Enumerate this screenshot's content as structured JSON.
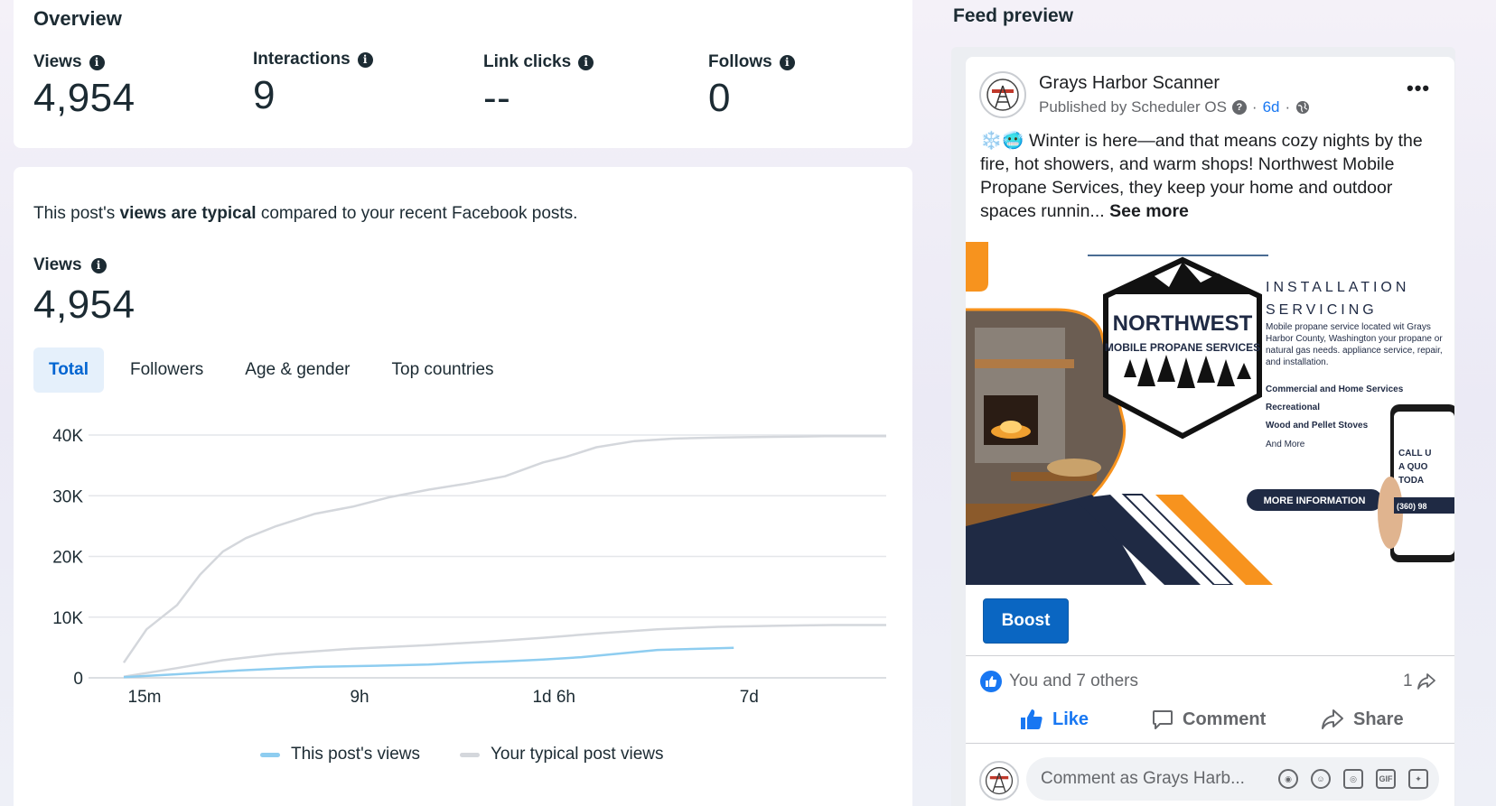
{
  "overview": {
    "title": "Overview",
    "metrics": [
      {
        "label": "Views",
        "value": "4,954"
      },
      {
        "label": "Interactions",
        "value": "9"
      },
      {
        "label": "Link clicks",
        "value": "--"
      },
      {
        "label": "Follows",
        "value": "0"
      }
    ]
  },
  "views_section": {
    "comparison_prefix": "This post's ",
    "comparison_bold": "views are typical",
    "comparison_suffix": " compared to your recent Facebook posts.",
    "label": "Views",
    "value": "4,954",
    "tabs": [
      {
        "label": "Total",
        "active": true
      },
      {
        "label": "Followers",
        "active": false
      },
      {
        "label": "Age & gender",
        "active": false
      },
      {
        "label": "Top countries",
        "active": false
      }
    ]
  },
  "chart_data": {
    "type": "line",
    "title": "",
    "xlabel": "",
    "ylabel": "",
    "ylim": [
      0,
      40000
    ],
    "y_ticks": [
      "0",
      "10K",
      "20K",
      "30K",
      "40K"
    ],
    "x_ticks": [
      "15m",
      "9h",
      "1d 6h",
      "7d"
    ],
    "grid": true,
    "legend_position": "bottom",
    "series": [
      {
        "name": "Your typical post views (upper band)",
        "color": "#d4d7dc",
        "x": [
          0,
          0.03,
          0.07,
          0.1,
          0.13,
          0.16,
          0.2,
          0.25,
          0.3,
          0.35,
          0.4,
          0.45,
          0.5,
          0.55,
          0.58,
          0.62,
          0.67,
          0.72,
          0.78,
          0.85,
          0.92,
          1.0
        ],
        "values": [
          2500,
          8000,
          12000,
          17000,
          20800,
          23000,
          25000,
          27000,
          28200,
          29800,
          31000,
          32000,
          33200,
          35500,
          36400,
          38000,
          39000,
          39400,
          39600,
          39700,
          39800,
          39800
        ]
      },
      {
        "name": "Your typical post views",
        "color": "#d4d7dc",
        "x": [
          0,
          0.07,
          0.13,
          0.2,
          0.3,
          0.4,
          0.48,
          0.55,
          0.62,
          0.7,
          0.78,
          0.86,
          0.93,
          1.0
        ],
        "values": [
          200,
          1600,
          2900,
          3900,
          4800,
          5400,
          6000,
          6600,
          7300,
          8000,
          8400,
          8600,
          8700,
          8700
        ]
      },
      {
        "name": "This post's views",
        "color": "#8ecdf0",
        "x": [
          0,
          0.07,
          0.15,
          0.25,
          0.33,
          0.4,
          0.45,
          0.5,
          0.55,
          0.6,
          0.65,
          0.7,
          0.8
        ],
        "values": [
          100,
          600,
          1200,
          1800,
          2000,
          2200,
          2500,
          2700,
          3000,
          3400,
          4000,
          4600,
          4954
        ]
      }
    ],
    "legend": [
      {
        "label": "This post's views",
        "color": "#8ecdf0"
      },
      {
        "label": "Your typical post views",
        "color": "#d4d7dc"
      }
    ]
  },
  "feed_preview": {
    "title": "Feed preview",
    "page_name": "Grays Harbor Scanner",
    "published_by": "Published by Scheduler OS",
    "time": "6d",
    "post_text": "❄️🥶 Winter is here—and that means cozy nights by the fire, hot showers, and warm shops! Northwest Mobile Propane Services, they keep your home and outdoor spaces runnin... ",
    "see_more": "See more",
    "ad": {
      "brand_line1": "NORTHWEST",
      "brand_line2": "MOBILE PROPANE SERVICES",
      "heading1": "INSTALLATION",
      "heading2": "SERVICING",
      "description": "Mobile propane service located wit Grays Harbor County, Washington your propane or natural gas needs. appliance service, repair, and installation.",
      "services": [
        "Commercial and Home Services",
        "Recreational",
        "Wood and Pellet Stoves"
      ],
      "and_more": "And More",
      "cta": "MORE INFORMATION",
      "call": [
        "CALL U",
        "A QUO",
        "TODA"
      ],
      "phone": "(360) 98"
    },
    "boost_label": "Boost",
    "reactions_text": "You and 7 others",
    "shares_count": "1",
    "actions": {
      "like": "Like",
      "comment": "Comment",
      "share": "Share"
    },
    "comment_placeholder": "Comment as Grays Harb...",
    "colors": {
      "accent": "#1877f2",
      "boost": "#0a66c2",
      "orange": "#f7931e",
      "navy": "#1f2a44"
    }
  }
}
